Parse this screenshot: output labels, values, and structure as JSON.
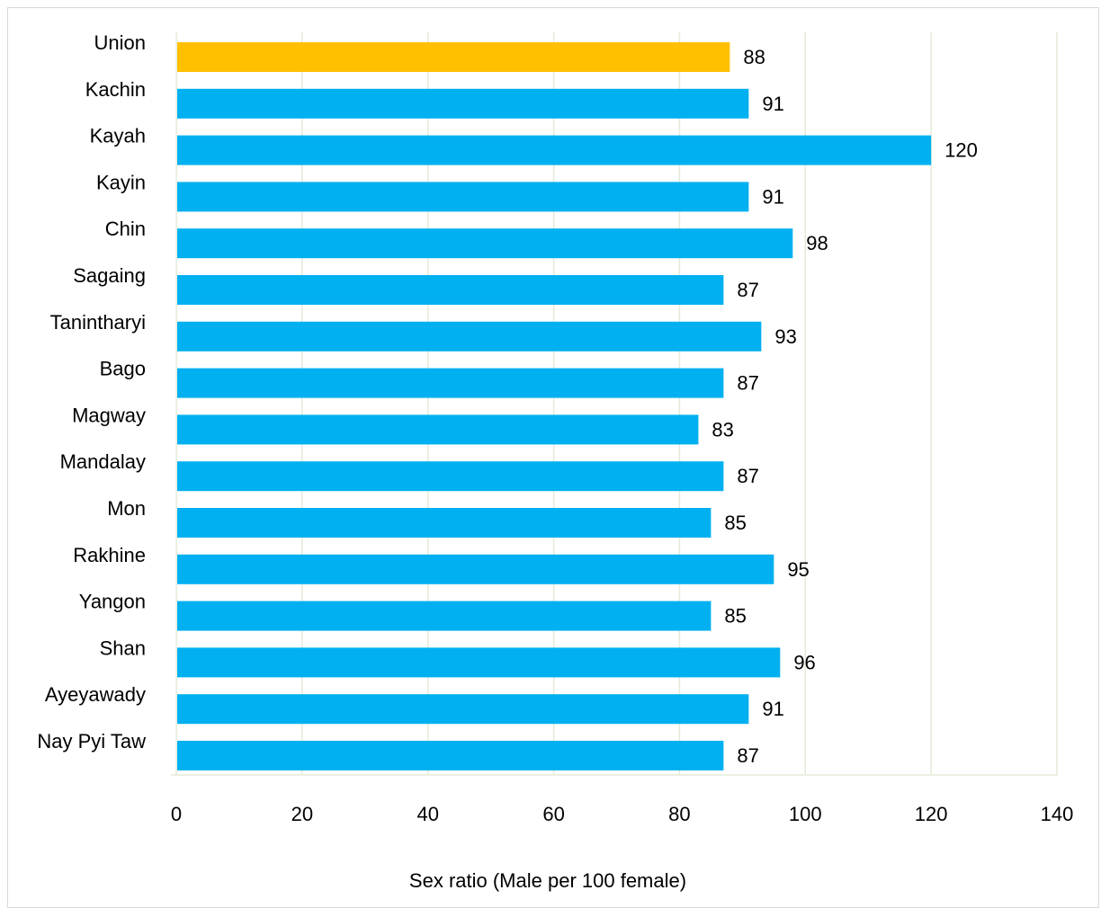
{
  "chart_data": {
    "type": "bar",
    "orientation": "horizontal",
    "categories": [
      "Union",
      "Kachin",
      "Kayah",
      "Kayin",
      "Chin",
      "Sagaing",
      "Tanintharyi",
      "Bago",
      "Magway",
      "Mandalay",
      "Mon",
      "Rakhine",
      "Yangon",
      "Shan",
      "Ayeyawady",
      "Nay Pyi Taw"
    ],
    "values": [
      88,
      91,
      120,
      91,
      98,
      87,
      93,
      87,
      83,
      87,
      85,
      95,
      85,
      96,
      91,
      87
    ],
    "bar_colors": [
      "#FFC000",
      "#00B0F0",
      "#00B0F0",
      "#00B0F0",
      "#00B0F0",
      "#00B0F0",
      "#00B0F0",
      "#00B0F0",
      "#00B0F0",
      "#00B0F0",
      "#00B0F0",
      "#00B0F0",
      "#00B0F0",
      "#00B0F0",
      "#00B0F0",
      "#00B0F0"
    ],
    "xlabel": "Sex ratio (Male per 100 female)",
    "ylabel": "",
    "xlim": [
      0,
      140
    ],
    "xticks": [
      0,
      20,
      40,
      60,
      80,
      100,
      120,
      140
    ],
    "grid": "vertical",
    "grid_color": "#E2EBD9",
    "data_labels": true,
    "legend": "none"
  }
}
